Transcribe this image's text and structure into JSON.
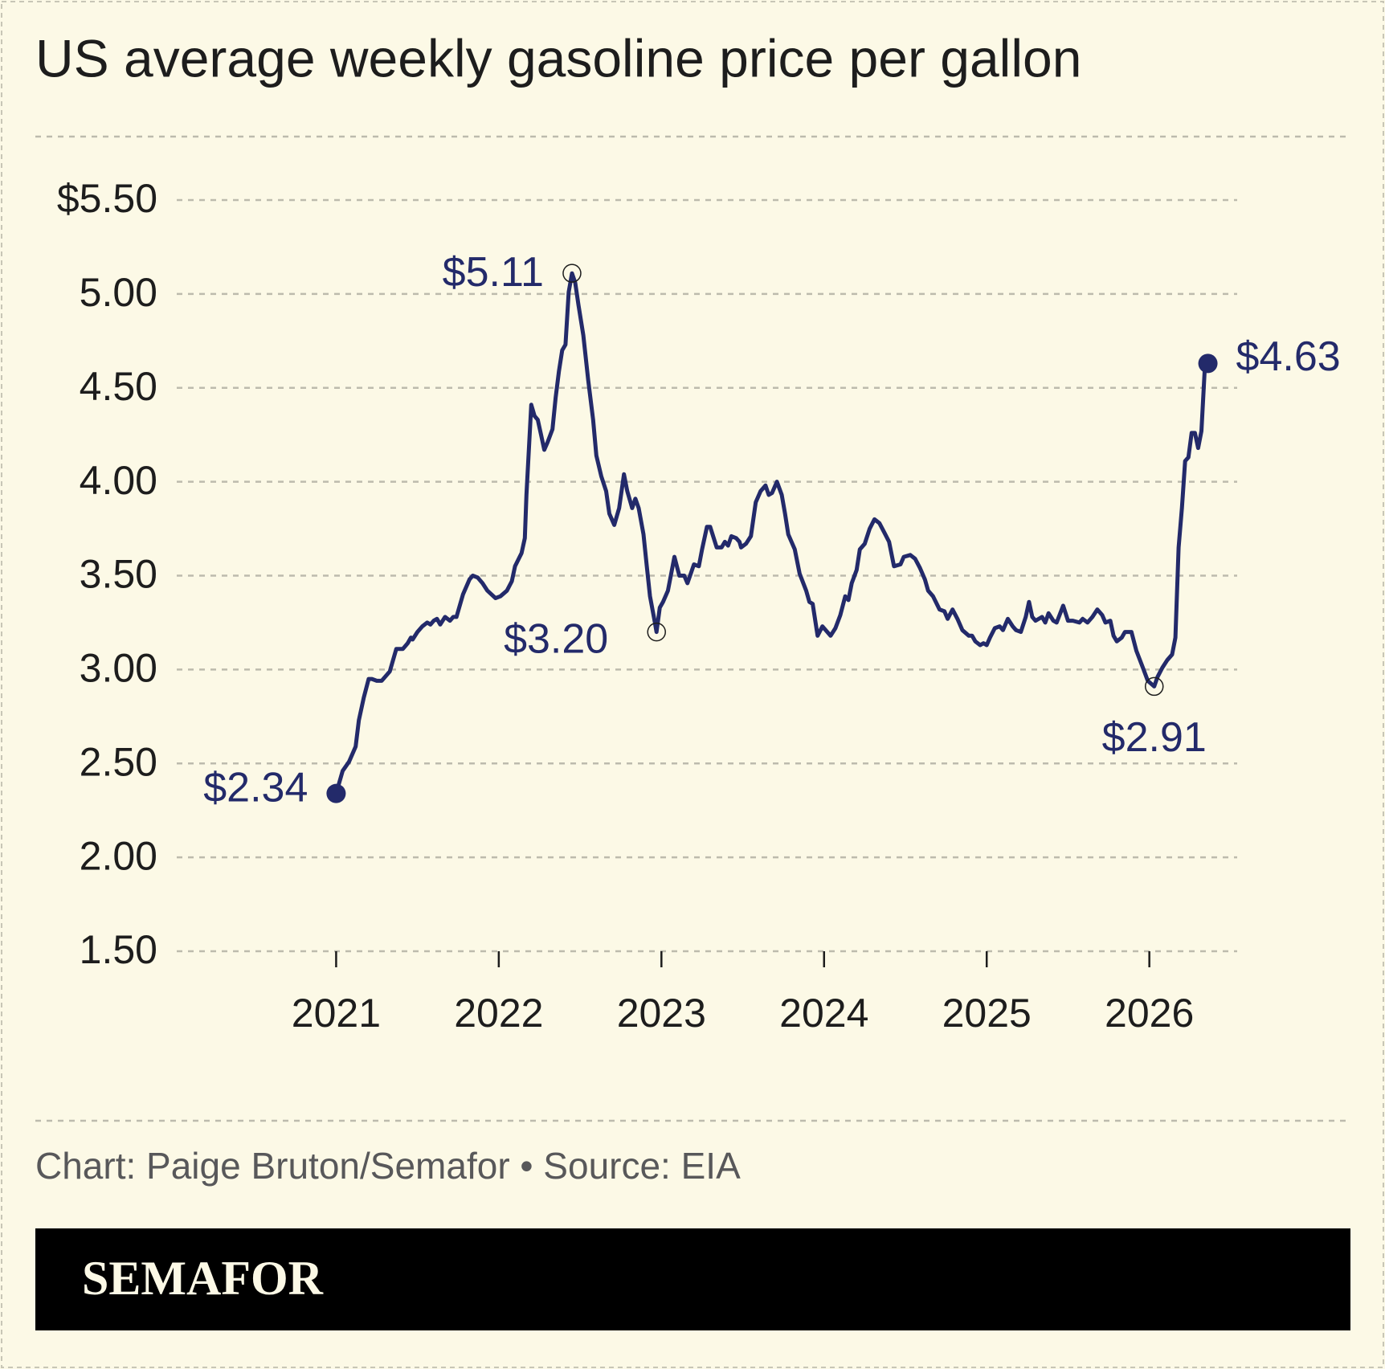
{
  "chart_data": {
    "type": "line",
    "title": "US average weekly gasoline price per gallon",
    "source": "Chart: Paige Bruton/Semafor • Source: EIA",
    "brand": "SEMAFOR",
    "color": "#232a6a",
    "grid": true,
    "xlim": [
      2020.02,
      2026.54
    ],
    "xticks": [
      2021,
      2022,
      2023,
      2024,
      2025,
      2026
    ],
    "ylim": [
      1.5,
      5.5
    ],
    "yticks": [
      {
        "value": 5.5,
        "label": "$5.50"
      },
      {
        "value": 5,
        "label": "5.00"
      },
      {
        "value": 4.5,
        "label": "4.50"
      },
      {
        "value": 4,
        "label": "4.00"
      },
      {
        "value": 3.5,
        "label": "3.50"
      },
      {
        "value": 3,
        "label": "3.00"
      },
      {
        "value": 2.5,
        "label": "2.50"
      },
      {
        "value": 2,
        "label": "2.00"
      },
      {
        "value": 1.5,
        "label": "1.50"
      }
    ],
    "x": [
      2021.0,
      2021.04,
      2021.08,
      2021.12,
      2021.14,
      2021.17,
      2021.2,
      2021.22,
      2021.25,
      2021.28,
      2021.33,
      2021.37,
      2021.41,
      2021.44,
      2021.46,
      2021.47,
      2021.5,
      2021.53,
      2021.56,
      2021.58,
      2021.6,
      2021.62,
      2021.64,
      2021.67,
      2021.7,
      2021.72,
      2021.74,
      2021.78,
      2021.82,
      2021.84,
      2021.87,
      2021.9,
      2021.93,
      2021.98,
      2022.01,
      2022.05,
      2022.08,
      2022.1,
      2022.14,
      2022.16,
      2022.17,
      2022.2,
      2022.22,
      2022.24,
      2022.26,
      2022.28,
      2022.3,
      2022.33,
      2022.35,
      2022.37,
      2022.39,
      2022.41,
      2022.43,
      2022.45,
      2022.47,
      2022.49,
      2022.52,
      2022.55,
      2022.58,
      2022.6,
      2022.63,
      2022.66,
      2022.68,
      2022.71,
      2022.74,
      2022.77,
      2022.79,
      2022.82,
      2022.84,
      2022.86,
      2022.89,
      2022.91,
      2022.93,
      2022.96,
      2022.97,
      2022.99,
      2023.01,
      2023.04,
      2023.08,
      2023.11,
      2023.14,
      2023.16,
      2023.18,
      2023.2,
      2023.23,
      2023.25,
      2023.28,
      2023.3,
      2023.34,
      2023.37,
      2023.39,
      2023.41,
      2023.43,
      2023.46,
      2023.48,
      2023.49,
      2023.52,
      2023.55,
      2023.58,
      2023.61,
      2023.64,
      2023.66,
      2023.68,
      2023.71,
      2023.74,
      2023.76,
      2023.78,
      2023.82,
      2023.85,
      2023.89,
      2023.91,
      2023.93,
      2023.96,
      2023.99,
      2024.02,
      2024.04,
      2024.07,
      2024.1,
      2024.13,
      2024.15,
      2024.17,
      2024.2,
      2024.22,
      2024.25,
      2024.28,
      2024.31,
      2024.34,
      2024.37,
      2024.4,
      2024.43,
      2024.47,
      2024.49,
      2024.53,
      2024.56,
      2024.59,
      2024.62,
      2024.64,
      2024.67,
      2024.71,
      2024.74,
      2024.76,
      2024.79,
      2024.82,
      2024.85,
      2024.89,
      2024.91,
      2024.93,
      2024.96,
      2024.98,
      2025.0,
      2025.02,
      2025.05,
      2025.08,
      2025.1,
      2025.13,
      2025.16,
      2025.18,
      2025.21,
      2025.24,
      2025.26,
      2025.28,
      2025.3,
      2025.34,
      2025.36,
      2025.38,
      2025.41,
      2025.43,
      2025.47,
      2025.5,
      2025.53,
      2025.57,
      2025.59,
      2025.62,
      2025.65,
      2025.68,
      2025.71,
      2025.73,
      2025.76,
      2025.78,
      2025.8,
      2025.83,
      2025.85,
      2025.89,
      2025.92,
      2025.96,
      2025.99,
      2026.03,
      2026.05,
      2026.08,
      2026.11,
      2026.14,
      2026.16,
      2026.18,
      2026.2,
      2026.22,
      2026.24,
      2026.26,
      2026.28,
      2026.3,
      2026.32,
      2026.34,
      2026.36
    ],
    "values": [
      2.34,
      2.46,
      2.51,
      2.59,
      2.73,
      2.85,
      2.95,
      2.95,
      2.94,
      2.94,
      2.99,
      3.11,
      3.11,
      3.14,
      3.17,
      3.16,
      3.2,
      3.23,
      3.25,
      3.24,
      3.26,
      3.27,
      3.24,
      3.28,
      3.26,
      3.28,
      3.28,
      3.4,
      3.48,
      3.5,
      3.49,
      3.46,
      3.42,
      3.38,
      3.39,
      3.42,
      3.47,
      3.55,
      3.62,
      3.7,
      3.93,
      4.41,
      4.35,
      4.33,
      4.25,
      4.17,
      4.21,
      4.28,
      4.45,
      4.59,
      4.7,
      4.73,
      5.01,
      5.11,
      5.06,
      4.94,
      4.78,
      4.54,
      4.33,
      4.14,
      4.03,
      3.95,
      3.83,
      3.77,
      3.86,
      4.04,
      3.95,
      3.86,
      3.91,
      3.86,
      3.72,
      3.55,
      3.39,
      3.25,
      3.2,
      3.33,
      3.36,
      3.42,
      3.6,
      3.5,
      3.5,
      3.46,
      3.51,
      3.56,
      3.55,
      3.64,
      3.76,
      3.76,
      3.65,
      3.65,
      3.68,
      3.66,
      3.71,
      3.7,
      3.68,
      3.65,
      3.67,
      3.71,
      3.89,
      3.95,
      3.98,
      3.93,
      3.94,
      4.0,
      3.93,
      3.83,
      3.72,
      3.64,
      3.51,
      3.42,
      3.36,
      3.35,
      3.18,
      3.23,
      3.2,
      3.18,
      3.22,
      3.29,
      3.39,
      3.37,
      3.46,
      3.53,
      3.64,
      3.67,
      3.75,
      3.8,
      3.78,
      3.73,
      3.68,
      3.55,
      3.56,
      3.6,
      3.61,
      3.59,
      3.54,
      3.48,
      3.42,
      3.39,
      3.32,
      3.31,
      3.27,
      3.32,
      3.27,
      3.21,
      3.18,
      3.18,
      3.15,
      3.13,
      3.14,
      3.13,
      3.17,
      3.22,
      3.23,
      3.21,
      3.27,
      3.23,
      3.21,
      3.2,
      3.28,
      3.36,
      3.28,
      3.26,
      3.28,
      3.25,
      3.3,
      3.26,
      3.25,
      3.34,
      3.26,
      3.26,
      3.25,
      3.27,
      3.25,
      3.28,
      3.32,
      3.29,
      3.25,
      3.26,
      3.18,
      3.15,
      3.17,
      3.2,
      3.2,
      3.1,
      3.01,
      2.94,
      2.91,
      2.96,
      3.01,
      3.05,
      3.08,
      3.17,
      3.65,
      3.86,
      4.11,
      4.13,
      4.26,
      4.26,
      4.18,
      4.27,
      4.59,
      4.63
    ],
    "annotations": [
      {
        "x": 2021.0,
        "value": 2.34,
        "label": "$2.34",
        "marker": "filled"
      },
      {
        "x": 2022.45,
        "value": 5.11,
        "label": "$5.11",
        "marker": "open"
      },
      {
        "x": 2022.97,
        "value": 3.2,
        "label": "$3.20",
        "marker": "open"
      },
      {
        "x": 2026.03,
        "value": 2.91,
        "label": "$2.91",
        "marker": "open"
      },
      {
        "x": 2026.36,
        "value": 4.63,
        "label": "$4.63",
        "marker": "filled"
      }
    ]
  }
}
